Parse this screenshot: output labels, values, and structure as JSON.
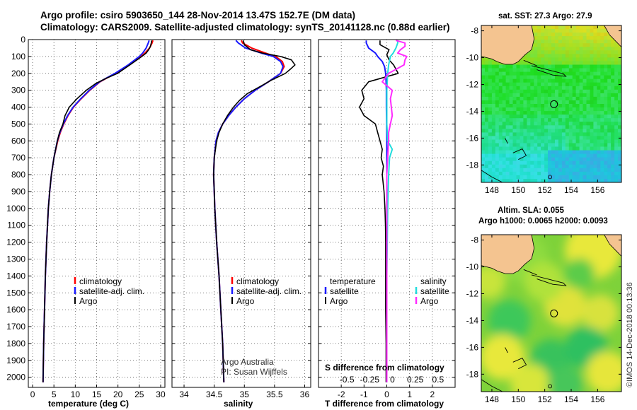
{
  "header": {
    "line1": "Argo profile: csiro 5903650_144 28-Nov-2014 13.47S 152.7E (DM data)",
    "line2": "Climatology: CARS2009. Satellite-adjusted climatology: synTS_20141128.nc (0.88d earlier)"
  },
  "credits": {
    "operator": "Argo Australia",
    "pi": "PI: Susan Wijffels",
    "stamp": "©IMOS 14-Dec-2018 00:13:36"
  },
  "colors": {
    "climatology": "#ff0000",
    "satellite": "#1a1aff",
    "argo": "#000000",
    "argo_s": "#ff2bff",
    "sat_s": "#22dddd",
    "land": "#f4c490",
    "grid": "#555555"
  },
  "chart_data": [
    {
      "type": "line",
      "id": "temperature",
      "title": "",
      "xlabel": "temperature (deg C)",
      "ylabel": "",
      "xlim": [
        -1,
        31
      ],
      "ylim": [
        0,
        2060
      ],
      "x_ticks": [
        0,
        5,
        10,
        15,
        20,
        25,
        30
      ],
      "y_ticks": [
        0,
        100,
        200,
        300,
        400,
        500,
        600,
        700,
        800,
        900,
        1000,
        1100,
        1200,
        1300,
        1400,
        1500,
        1600,
        1700,
        1800,
        1900,
        2000
      ],
      "legend": {
        "position": "center-right",
        "entries": [
          "climatology",
          "satellite-adj. clim.",
          "Argo"
        ]
      },
      "series": [
        {
          "name": "climatology",
          "color": "#ff0000",
          "depth": [
            5,
            20,
            50,
            80,
            100,
            150,
            200,
            250,
            300,
            350,
            400,
            450,
            500,
            550,
            600,
            700,
            800,
            900,
            1000,
            1200,
            1400,
            1600,
            1800,
            2030
          ],
          "values": [
            28.2,
            28.0,
            27.4,
            26.3,
            25.4,
            22.6,
            19.4,
            15.8,
            13.4,
            11.4,
            9.6,
            8.3,
            7.3,
            6.5,
            5.9,
            5.0,
            4.4,
            4.0,
            3.7,
            3.3,
            3.0,
            2.8,
            2.6,
            2.45
          ]
        },
        {
          "name": "satellite-adj. clim.",
          "color": "#1a1aff",
          "depth": [
            5,
            20,
            50,
            80,
            100,
            150,
            200,
            250,
            300,
            350,
            400,
            450,
            500,
            550,
            600,
            700,
            800,
            900,
            1000,
            1200,
            1400,
            1600,
            1800,
            2030
          ],
          "values": [
            27.3,
            27.1,
            26.6,
            25.8,
            25.0,
            22.4,
            19.3,
            15.7,
            13.3,
            11.3,
            9.5,
            8.2,
            7.2,
            6.4,
            5.8,
            5.0,
            4.4,
            4.0,
            3.7,
            3.3,
            3.0,
            2.8,
            2.6,
            2.45
          ]
        },
        {
          "name": "Argo",
          "color": "#000000",
          "depth": [
            5,
            20,
            40,
            60,
            80,
            100,
            150,
            200,
            230,
            260,
            300,
            350,
            400,
            450,
            500,
            550,
            600,
            700,
            800,
            900,
            1000,
            1200,
            1400,
            1600,
            1800,
            2030
          ],
          "values": [
            27.9,
            27.8,
            27.6,
            27.2,
            26.6,
            25.6,
            22.8,
            19.9,
            17.2,
            14.8,
            12.6,
            10.4,
            8.6,
            7.6,
            7.1,
            6.3,
            5.8,
            5.0,
            4.4,
            4.0,
            3.7,
            3.3,
            3.0,
            2.8,
            2.6,
            2.45
          ]
        }
      ]
    },
    {
      "type": "line",
      "id": "salinity",
      "title": "",
      "xlabel": "salinity",
      "ylabel": "",
      "xlim": [
        33.8,
        36.1
      ],
      "ylim": [
        0,
        2060
      ],
      "x_ticks": [
        34,
        34.5,
        35,
        35.5,
        36
      ],
      "x_tick_labels": [
        "34",
        "34.5",
        "35",
        "35.5",
        "36"
      ],
      "legend": {
        "position": "center-right",
        "entries": [
          "climatology",
          "satellite-adj. clim.",
          "Argo"
        ]
      },
      "series": [
        {
          "name": "climatology",
          "color": "#ff0000",
          "depth": [
            5,
            20,
            50,
            80,
            100,
            130,
            160,
            200,
            250,
            300,
            350,
            400,
            450,
            500,
            550,
            600,
            700,
            800,
            900,
            1000,
            1200,
            1400,
            1600,
            1800,
            2030
          ],
          "values": [
            34.95,
            34.97,
            35.12,
            35.35,
            35.52,
            35.63,
            35.66,
            35.6,
            35.4,
            35.18,
            35.0,
            34.86,
            34.74,
            34.64,
            34.57,
            34.53,
            34.5,
            34.49,
            34.5,
            34.51,
            34.54,
            34.58,
            34.61,
            34.64,
            34.66
          ]
        },
        {
          "name": "satellite-adj. clim.",
          "color": "#1a1aff",
          "depth": [
            5,
            20,
            50,
            80,
            100,
            130,
            160,
            200,
            250,
            300,
            350,
            400,
            450,
            500,
            550,
            600,
            700,
            800,
            900,
            1000,
            1200,
            1400,
            1600,
            1800,
            2030
          ],
          "values": [
            34.86,
            34.9,
            35.02,
            35.28,
            35.48,
            35.6,
            35.64,
            35.6,
            35.4,
            35.18,
            35.0,
            34.86,
            34.74,
            34.64,
            34.57,
            34.53,
            34.5,
            34.49,
            34.5,
            34.51,
            34.54,
            34.58,
            34.61,
            34.64,
            34.66
          ]
        },
        {
          "name": "Argo",
          "color": "#000000",
          "depth": [
            5,
            30,
            60,
            80,
            100,
            120,
            150,
            170,
            200,
            240,
            280,
            320,
            360,
            400,
            450,
            500,
            550,
            600,
            700,
            800,
            900,
            1000,
            1200,
            1400,
            1600,
            1800,
            2030
          ],
          "values": [
            34.98,
            35.0,
            35.1,
            35.3,
            35.6,
            35.78,
            35.84,
            35.78,
            35.68,
            35.45,
            35.25,
            35.05,
            34.92,
            34.82,
            34.72,
            34.64,
            34.58,
            34.54,
            34.5,
            34.49,
            34.5,
            34.51,
            34.54,
            34.58,
            34.61,
            34.64,
            34.66
          ]
        }
      ]
    },
    {
      "type": "line",
      "id": "difference",
      "title": "",
      "xlabel": "T difference from climatology",
      "ylabel": "",
      "xlim": [
        -3,
        3
      ],
      "ylim": [
        0,
        2060
      ],
      "x_ticks": [
        -2,
        -1,
        0,
        1,
        2
      ],
      "secondary_xlabel": "S difference from climatology",
      "secondary_x_ticks": [
        -0.5,
        -0.25,
        0,
        0.25,
        0.5
      ],
      "secondary_x_tick_labels": [
        "-0.5",
        "-0.25",
        "0",
        "0.25",
        "0.5"
      ],
      "legend_left": {
        "title": "temperature",
        "entries": [
          "satellite",
          "Argo"
        ]
      },
      "legend_right": {
        "title": "salinity",
        "entries": [
          "satellite",
          "Argo"
        ]
      },
      "series": [
        {
          "name": "T satellite",
          "color": "#1a1aff",
          "units": "degC",
          "depth": [
            5,
            20,
            50,
            80,
            100,
            130,
            160,
            200,
            250,
            300,
            400,
            600,
            2030
          ],
          "values": [
            -0.9,
            -0.9,
            -0.8,
            -0.5,
            -0.4,
            -0.2,
            -0.1,
            -0.05,
            -0.03,
            -0.02,
            -0.02,
            0,
            0
          ]
        },
        {
          "name": "T Argo",
          "color": "#000000",
          "units": "degC",
          "depth": [
            5,
            30,
            60,
            90,
            120,
            150,
            200,
            250,
            300,
            350,
            400,
            450,
            500,
            550,
            600,
            650,
            700,
            750,
            800,
            900,
            1000,
            1100,
            1200,
            1400,
            1600,
            1800,
            2030
          ],
          "values": [
            -0.3,
            -0.3,
            0.1,
            0.0,
            0.1,
            0.3,
            0.5,
            -0.8,
            -1.1,
            -1.0,
            -1.2,
            -1.0,
            -0.5,
            -0.4,
            -0.3,
            -0.2,
            -0.25,
            -0.15,
            -0.2,
            -0.12,
            -0.08,
            -0.06,
            -0.05,
            -0.05,
            -0.05,
            -0.03,
            -0.03
          ]
        },
        {
          "name": "S satellite",
          "color": "#22dddd",
          "units": "psu",
          "depth": [
            5,
            20,
            50,
            80,
            100,
            150,
            200,
            300,
            400,
            500,
            600,
            650,
            700,
            800,
            1000,
            1400,
            1800,
            2030
          ],
          "values": [
            0.12,
            0.12,
            0.1,
            0.07,
            0.04,
            0.02,
            0.01,
            0.0,
            0.0,
            0.0,
            0.01,
            0.06,
            0.03,
            0.02,
            0.01,
            0.0,
            0.0,
            0.0
          ]
        },
        {
          "name": "S Argo",
          "color": "#ff2bff",
          "units": "psu",
          "depth": [
            5,
            20,
            40,
            60,
            80,
            100,
            120,
            150,
            200,
            250,
            300,
            350,
            400,
            450,
            500,
            550,
            600,
            700,
            800,
            1000,
            1200,
            1400,
            1600,
            1800,
            2030
          ],
          "values": [
            0.1,
            0.2,
            0.2,
            0.15,
            0.12,
            0.22,
            0.2,
            0.19,
            0.02,
            -0.05,
            0.06,
            0.04,
            0.05,
            0.06,
            0.04,
            0.02,
            0.02,
            0.01,
            0.0,
            0.0,
            0.0,
            0.0,
            0.0,
            0.0,
            0.0
          ]
        }
      ]
    },
    {
      "type": "heatmap",
      "id": "sst_map",
      "title": "sat. SST: 27.3 Argo: 27.9",
      "x_ticks": [
        148,
        150,
        152,
        154,
        156
      ],
      "y_ticks": [
        -8,
        -10,
        -12,
        -14,
        -16,
        -18
      ],
      "xlim": [
        147.2,
        157.8
      ],
      "ylim": [
        -19.3,
        -7.6
      ],
      "argo_position": {
        "lon": 152.7,
        "lat": -13.47
      }
    },
    {
      "type": "heatmap",
      "id": "sla_map",
      "title": "Altim. SLA: 0.055",
      "subtitle": "Argo h1000: 0.0065 h2000: 0.0093",
      "x_ticks": [
        148,
        150,
        152,
        154,
        156
      ],
      "y_ticks": [
        -8,
        -10,
        -12,
        -14,
        -16,
        -18
      ],
      "xlim": [
        147.2,
        157.8
      ],
      "ylim": [
        -19.3,
        -7.6
      ],
      "argo_position": {
        "lon": 152.7,
        "lat": -13.47
      }
    }
  ]
}
